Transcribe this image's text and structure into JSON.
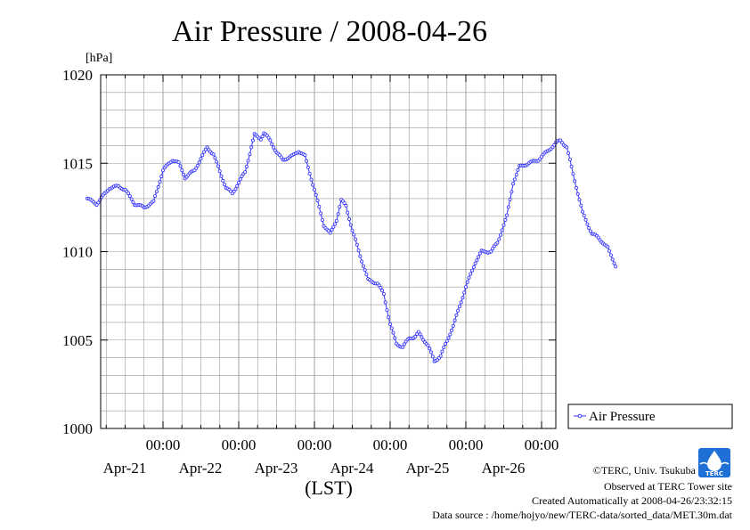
{
  "colors": {
    "series": "#3232ff",
    "grid": "#999999",
    "frame": "#000000",
    "logo": "#1e6fd6"
  },
  "credit": {
    "copyright": "©TERC, Univ. Tsukuba",
    "observed": "Observed at TERC Tower site",
    "created": "Created Automatically at 2008-04-26/23:32:15",
    "source": "Data source : /home/hojyo/new/TERC-data/sorted_data/MET.30m.dat"
  },
  "logo": {
    "text": "TERC"
  },
  "chart_data": {
    "type": "line",
    "title": "Air Pressure / 2008-04-26",
    "ylabel": "[hPa]",
    "xlabel": "(LST)",
    "ylim": [
      1000,
      1020
    ],
    "yticks": [
      1000,
      1005,
      1010,
      1015,
      1020
    ],
    "xlim_days": [
      0,
      6
    ],
    "xtick_time_label": "00:00",
    "xticks": [
      {
        "day": 1,
        "time": "00:00",
        "date": "Apr-21"
      },
      {
        "day": 2,
        "time": "00:00",
        "date": "Apr-22"
      },
      {
        "day": 3,
        "time": "00:00",
        "date": "Apr-23"
      },
      {
        "day": 4,
        "time": "00:00",
        "date": "Apr-24"
      },
      {
        "day": 5,
        "time": "00:00",
        "date": "Apr-25"
      },
      {
        "day": 6,
        "time": "00:00",
        "date": "Apr-26"
      }
    ],
    "grid": true,
    "legend": {
      "position": "right",
      "entries": [
        "Air Pressure"
      ]
    },
    "series": [
      {
        "name": "Air Pressure",
        "interval_minutes": 30,
        "start": "2008-04-20 00:00",
        "keyframes": [
          [
            "2008-04-20 00:00",
            1013.0
          ],
          [
            "2008-04-20 03:00",
            1012.7
          ],
          [
            "2008-04-20 07:00",
            1013.6
          ],
          [
            "2008-04-20 10:00",
            1013.7
          ],
          [
            "2008-04-20 12:00",
            1013.5
          ],
          [
            "2008-04-20 15:00",
            1012.7
          ],
          [
            "2008-04-20 18:00",
            1012.5
          ],
          [
            "2008-04-20 21:00",
            1012.8
          ],
          [
            "2008-04-21 00:00",
            1014.6
          ],
          [
            "2008-04-21 03:00",
            1015.2
          ],
          [
            "2008-04-21 05:00",
            1015.0
          ],
          [
            "2008-04-21 07:00",
            1014.2
          ],
          [
            "2008-04-21 10:00",
            1014.6
          ],
          [
            "2008-04-21 14:00",
            1015.9
          ],
          [
            "2008-04-21 16:00",
            1015.5
          ],
          [
            "2008-04-21 20:00",
            1013.6
          ],
          [
            "2008-04-21 22:00",
            1013.3
          ],
          [
            "2008-04-22 02:00",
            1014.5
          ],
          [
            "2008-04-22 05:00",
            1016.6
          ],
          [
            "2008-04-22 07:00",
            1016.4
          ],
          [
            "2008-04-22 08:00",
            1016.7
          ],
          [
            "2008-04-22 10:00",
            1016.3
          ],
          [
            "2008-04-22 12:00",
            1015.6
          ],
          [
            "2008-04-22 14:00",
            1015.2
          ],
          [
            "2008-04-22 17:00",
            1015.4
          ],
          [
            "2008-04-22 19:00",
            1015.7
          ],
          [
            "2008-04-22 21:00",
            1015.4
          ],
          [
            "2008-04-23 00:00",
            1013.5
          ],
          [
            "2008-04-23 03:00",
            1011.5
          ],
          [
            "2008-04-23 05:00",
            1011.0
          ],
          [
            "2008-04-23 07:00",
            1011.8
          ],
          [
            "2008-04-23 08:30",
            1012.9
          ],
          [
            "2008-04-23 10:00",
            1012.6
          ],
          [
            "2008-04-23 12:00",
            1011.2
          ],
          [
            "2008-04-23 15:00",
            1009.5
          ],
          [
            "2008-04-23 17:00",
            1008.4
          ],
          [
            "2008-04-23 20:00",
            1008.2
          ],
          [
            "2008-04-23 22:00",
            1007.6
          ],
          [
            "2008-04-24 00:00",
            1005.9
          ],
          [
            "2008-04-24 02:00",
            1004.8
          ],
          [
            "2008-04-24 04:00",
            1004.6
          ],
          [
            "2008-04-24 06:00",
            1005.1
          ],
          [
            "2008-04-24 08:00",
            1005.2
          ],
          [
            "2008-04-24 09:00",
            1005.4
          ],
          [
            "2008-04-24 12:00",
            1004.7
          ],
          [
            "2008-04-24 14:00",
            1003.8
          ],
          [
            "2008-04-24 16:00",
            1004.1
          ],
          [
            "2008-04-24 20:00",
            1005.8
          ],
          [
            "2008-04-25 00:00",
            1008.0
          ],
          [
            "2008-04-25 03:00",
            1009.4
          ],
          [
            "2008-04-25 05:00",
            1010.0
          ],
          [
            "2008-04-25 08:00",
            1010.0
          ],
          [
            "2008-04-25 10:00",
            1010.5
          ],
          [
            "2008-04-25 13:00",
            1012.0
          ],
          [
            "2008-04-25 15:00",
            1013.9
          ],
          [
            "2008-04-25 17:00",
            1014.8
          ],
          [
            "2008-04-25 20:00",
            1015.0
          ],
          [
            "2008-04-25 23:00",
            1015.2
          ],
          [
            "2008-04-26 02:00",
            1015.7
          ],
          [
            "2008-04-26 05:00",
            1016.2
          ],
          [
            "2008-04-26 06:00",
            1016.3
          ],
          [
            "2008-04-26 08:00",
            1015.9
          ],
          [
            "2008-04-26 10:00",
            1014.4
          ],
          [
            "2008-04-26 13:00",
            1012.2
          ],
          [
            "2008-04-26 16:00",
            1011.0
          ],
          [
            "2008-04-26 18:00",
            1010.8
          ],
          [
            "2008-04-26 21:00",
            1010.2
          ],
          [
            "2008-04-26 23:30",
            1009.2
          ]
        ]
      }
    ]
  }
}
